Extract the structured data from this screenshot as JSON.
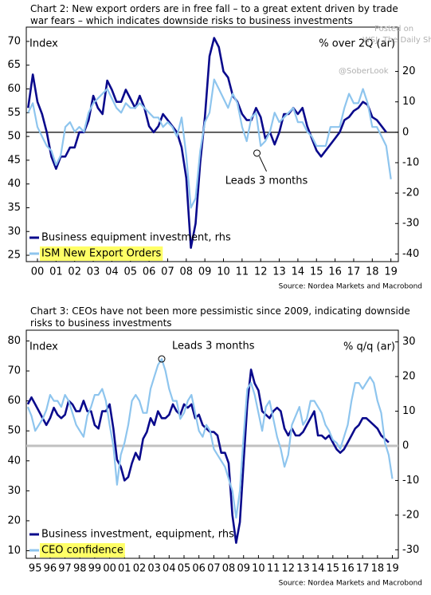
{
  "chart_data": [
    {
      "type": "line",
      "title": "Chart 2: New export orders are in free fall – to a great extent driven by trade war fears – which indicates downside risks to business investments",
      "y_label": "Index",
      "y2_label": "% over 2Q (ar)",
      "source": "Source: Nordea Markets and Macrobond",
      "watermark": [
        "Posted on",
        "WSJ: The Daily Shot",
        "@SoberLook"
      ],
      "annotation": {
        "text": "Leads 3 months",
        "x": 2012.3,
        "y": 46.5
      },
      "xlim": [
        1999.9,
        2019.9
      ],
      "xticks": [
        {
          "value": 2000.5,
          "label": "00"
        },
        {
          "value": 2001.5,
          "label": "01"
        },
        {
          "value": 2002.5,
          "label": "02"
        },
        {
          "value": 2003.5,
          "label": "03"
        },
        {
          "value": 2004.5,
          "label": "04"
        },
        {
          "value": 2005.5,
          "label": "05"
        },
        {
          "value": 2006.5,
          "label": "06"
        },
        {
          "value": 2007.5,
          "label": "07"
        },
        {
          "value": 2008.5,
          "label": "08"
        },
        {
          "value": 2009.5,
          "label": "09"
        },
        {
          "value": 2010.5,
          "label": "10"
        },
        {
          "value": 2011.5,
          "label": "11"
        },
        {
          "value": 2012.5,
          "label": "12"
        },
        {
          "value": 2013.5,
          "label": "13"
        },
        {
          "value": 2014.5,
          "label": "14"
        },
        {
          "value": 2015.5,
          "label": "15"
        },
        {
          "value": 2016.5,
          "label": "16"
        },
        {
          "value": 2017.5,
          "label": "17"
        },
        {
          "value": 2018.5,
          "label": "18"
        },
        {
          "value": 2019.5,
          "label": "19"
        }
      ],
      "ylim": [
        24,
        72
      ],
      "yticks": [
        25,
        30,
        35,
        40,
        45,
        50,
        55,
        60,
        65,
        70
      ],
      "y2lim": [
        -42,
        33
      ],
      "y2ticks": [
        -40,
        -30,
        -20,
        -10,
        0,
        10,
        20
      ],
      "zero_line_color": "#000000",
      "x": [
        2000,
        2000.25,
        2000.5,
        2000.75,
        2001,
        2001.25,
        2001.5,
        2001.75,
        2002,
        2002.25,
        2002.5,
        2002.75,
        2003,
        2003.25,
        2003.5,
        2003.75,
        2004,
        2004.25,
        2004.5,
        2004.75,
        2005,
        2005.25,
        2005.5,
        2005.75,
        2006,
        2006.25,
        2006.5,
        2006.75,
        2007,
        2007.25,
        2007.5,
        2007.75,
        2008,
        2008.25,
        2008.5,
        2008.75,
        2009,
        2009.25,
        2009.5,
        2009.75,
        2010,
        2010.25,
        2010.5,
        2010.75,
        2011,
        2011.25,
        2011.5,
        2011.75,
        2012,
        2012.25,
        2012.5,
        2012.75,
        2013,
        2013.25,
        2013.5,
        2013.75,
        2014,
        2014.25,
        2014.5,
        2014.75,
        2015,
        2015.25,
        2015.5,
        2015.75,
        2016,
        2016.25,
        2016.5,
        2016.75,
        2017,
        2017.25,
        2017.5,
        2017.75,
        2018,
        2018.25,
        2018.5,
        2018.75,
        2019,
        2019.25,
        2019.5
      ],
      "series": [
        {
          "name": "Business equipment investment, rhs",
          "color": "#0a0a8c",
          "axis": "y2",
          "values": [
            8,
            19,
            10,
            6,
            0,
            -8,
            -12,
            -8,
            -8,
            -5,
            -5,
            0,
            0,
            4,
            12,
            8,
            6,
            17,
            14,
            10,
            10,
            14,
            11,
            8,
            12,
            8,
            2,
            0,
            2,
            6,
            4,
            2,
            0,
            -5,
            -15,
            -38,
            -30,
            -10,
            5,
            25,
            31,
            28,
            20,
            18,
            12,
            10,
            6,
            4,
            4,
            8,
            5,
            -2,
            0,
            -4,
            0,
            6,
            6,
            8,
            6,
            8,
            2,
            -2,
            -6,
            -8,
            -6,
            -4,
            -2,
            0,
            4,
            5,
            7,
            8,
            10,
            9,
            5,
            4,
            2,
            0,
            null
          ]
        },
        {
          "name": "ISM New Export Orders",
          "color": "#8ec5ee",
          "highlight": "#ffff66",
          "values": [
            55,
            57,
            52,
            50,
            48,
            47,
            44,
            46,
            52,
            53,
            51,
            52,
            51,
            55,
            57,
            58,
            59,
            60,
            58,
            56,
            55,
            57,
            56,
            56,
            57,
            56,
            55,
            54,
            54,
            52,
            53,
            52,
            50,
            54,
            46,
            35,
            37,
            47,
            53,
            55,
            62,
            60,
            58,
            56,
            59,
            57,
            52,
            49,
            54,
            55,
            48,
            49,
            51,
            55,
            53,
            54,
            55,
            56,
            53,
            53,
            51,
            50,
            48,
            48,
            48,
            52,
            52,
            52,
            56,
            59,
            57,
            57,
            60,
            57,
            52,
            52,
            50,
            48,
            41
          ]
        }
      ]
    },
    {
      "type": "line",
      "title": "Chart 3: CEOs have not been more pessimistic since 2009, indicating downside risks to business investments",
      "y_label": "Index",
      "y2_label": "% q/q (ar)",
      "source": "Source: Nordea Markets and Macrobond",
      "annotation": {
        "text": "Leads 3 months",
        "x": 2004.0,
        "y": 74
      },
      "xlim": [
        1994.9,
        2019.9
      ],
      "xticks": [
        {
          "value": 1995.5,
          "label": "95"
        },
        {
          "value": 1996.5,
          "label": "96"
        },
        {
          "value": 1997.5,
          "label": "97"
        },
        {
          "value": 1998.5,
          "label": "98"
        },
        {
          "value": 1999.5,
          "label": "99"
        },
        {
          "value": 2000.5,
          "label": "00"
        },
        {
          "value": 2001.5,
          "label": "01"
        },
        {
          "value": 2002.5,
          "label": "02"
        },
        {
          "value": 2003.5,
          "label": "03"
        },
        {
          "value": 2004.5,
          "label": "04"
        },
        {
          "value": 2005.5,
          "label": "05"
        },
        {
          "value": 2006.5,
          "label": "06"
        },
        {
          "value": 2007.5,
          "label": "07"
        },
        {
          "value": 2008.5,
          "label": "08"
        },
        {
          "value": 2009.5,
          "label": "09"
        },
        {
          "value": 2010.5,
          "label": "10"
        },
        {
          "value": 2011.5,
          "label": "11"
        },
        {
          "value": 2012.5,
          "label": "12"
        },
        {
          "value": 2013.5,
          "label": "13"
        },
        {
          "value": 2014.5,
          "label": "14"
        },
        {
          "value": 2015.5,
          "label": "15"
        },
        {
          "value": 2016.5,
          "label": "16"
        },
        {
          "value": 2017.5,
          "label": "17"
        },
        {
          "value": 2018.5,
          "label": "18"
        },
        {
          "value": 2019.5,
          "label": "19"
        }
      ],
      "ylim": [
        8,
        82
      ],
      "yticks": [
        10,
        20,
        30,
        40,
        50,
        60,
        70,
        80
      ],
      "y2lim": [
        -32,
        32
      ],
      "y2ticks": [
        -30,
        -20,
        -10,
        0,
        10,
        20,
        30
      ],
      "zero_line_color": "#c0c0c0",
      "x": [
        1995,
        1995.25,
        1995.5,
        1995.75,
        1996,
        1996.25,
        1996.5,
        1996.75,
        1997,
        1997.25,
        1997.5,
        1997.75,
        1998,
        1998.25,
        1998.5,
        1998.75,
        1999,
        1999.25,
        1999.5,
        1999.75,
        2000,
        2000.25,
        2000.5,
        2000.75,
        2001,
        2001.25,
        2001.5,
        2001.75,
        2002,
        2002.25,
        2002.5,
        2002.75,
        2003,
        2003.25,
        2003.5,
        2003.75,
        2004,
        2004.25,
        2004.5,
        2004.75,
        2005,
        2005.25,
        2005.5,
        2005.75,
        2006,
        2006.25,
        2006.5,
        2006.75,
        2007,
        2007.25,
        2007.5,
        2007.75,
        2008,
        2008.25,
        2008.5,
        2008.75,
        2009,
        2009.25,
        2009.5,
        2009.75,
        2010,
        2010.25,
        2010.5,
        2010.75,
        2011,
        2011.25,
        2011.5,
        2011.75,
        2012,
        2012.25,
        2012.5,
        2012.75,
        2013,
        2013.25,
        2013.5,
        2013.75,
        2014,
        2014.25,
        2014.5,
        2014.75,
        2015,
        2015.25,
        2015.5,
        2015.75,
        2016,
        2016.25,
        2016.5,
        2016.75,
        2017,
        2017.25,
        2017.5,
        2017.75,
        2018,
        2018.25,
        2018.5,
        2018.75,
        2019,
        2019.25,
        2019.5
      ],
      "series": [
        {
          "name": "Business investment, equipment, rhs",
          "color": "#0a0a8c",
          "axis": "y2",
          "values": [
            12,
            14,
            12,
            10,
            8,
            6,
            8,
            11,
            9,
            8,
            9,
            13,
            12,
            10,
            10,
            13,
            10,
            10,
            6,
            5,
            10,
            10,
            12,
            5,
            -4,
            -6,
            -10,
            -9,
            -5,
            -2,
            -4,
            2,
            4,
            8,
            6,
            10,
            8,
            8,
            9,
            12,
            10,
            9,
            12,
            11,
            12,
            8,
            9,
            6,
            5,
            4,
            4,
            3,
            -2,
            -2,
            -5,
            -20,
            -28,
            -22,
            -5,
            12,
            22,
            18,
            16,
            10,
            9,
            8,
            10,
            11,
            10,
            5,
            3,
            5,
            3,
            3,
            4,
            6,
            8,
            10,
            3,
            3,
            2,
            3,
            1,
            -1,
            -2,
            -1,
            1,
            3,
            5,
            6,
            8,
            8,
            7,
            6,
            5,
            3,
            2,
            1,
            null
          ]
        },
        {
          "name": "CEO confidence",
          "color": "#8ec5ee",
          "highlight": "#ffff66",
          "values": [
            58,
            55,
            50,
            52,
            54,
            57,
            62,
            60,
            60,
            58,
            62,
            60,
            56,
            52,
            50,
            48,
            55,
            58,
            62,
            62,
            64,
            60,
            52,
            45,
            32,
            42,
            46,
            52,
            60,
            62,
            60,
            56,
            56,
            64,
            68,
            72,
            74,
            70,
            64,
            60,
            60,
            54,
            56,
            60,
            62,
            56,
            50,
            48,
            52,
            50,
            44,
            42,
            40,
            38,
            34,
            30,
            21,
            30,
            48,
            64,
            66,
            62,
            56,
            50,
            58,
            60,
            54,
            48,
            44,
            38,
            42,
            52,
            55,
            58,
            52,
            54,
            60,
            60,
            58,
            56,
            52,
            50,
            47,
            46,
            44,
            48,
            52,
            60,
            66,
            66,
            64,
            66,
            68,
            66,
            60,
            56,
            46,
            42,
            34
          ]
        }
      ]
    }
  ]
}
